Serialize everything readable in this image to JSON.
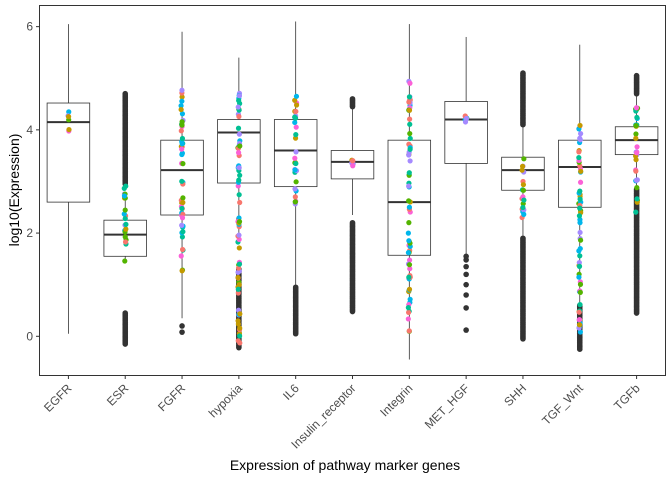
{
  "chart_data": {
    "type": "box",
    "title": "",
    "xlabel": "Expression of pathway marker genes",
    "ylabel": "log10(Expression)",
    "ylim": [
      -0.75,
      6.4
    ],
    "yticks": [
      0,
      2,
      4,
      6
    ],
    "grid": false,
    "legend": "none",
    "categories": [
      "EGFR",
      "ESR",
      "FGFR",
      "hypoxia",
      "IL6",
      "Insulin_receptor",
      "Integrin",
      "MET_HGF",
      "SHH",
      "TGF_Wnt",
      "TGFb"
    ],
    "boxes": [
      {
        "min": 0.05,
        "q1": 2.6,
        "median": 4.15,
        "q3": 4.52,
        "max": 6.05,
        "outliers": []
      },
      {
        "min": 1.45,
        "q1": 1.55,
        "median": 1.97,
        "q3": 2.25,
        "max": 2.7,
        "outliers_high": [
          2.95,
          4.7
        ],
        "outliers_low": [
          -0.15,
          0.45
        ]
      },
      {
        "min": 0.35,
        "q1": 2.35,
        "median": 3.22,
        "q3": 3.8,
        "max": 5.9,
        "outliers": [
          0.2,
          0.08
        ]
      },
      {
        "min": 1.95,
        "q1": 2.97,
        "median": 3.95,
        "q3": 4.2,
        "max": 5.4,
        "outliers_low": [
          -0.22,
          1.3
        ]
      },
      {
        "min": 1.0,
        "q1": 2.9,
        "median": 3.6,
        "q3": 4.2,
        "max": 6.1,
        "outliers_low": [
          0.05,
          0.95
        ]
      },
      {
        "min": 2.35,
        "q1": 3.05,
        "median": 3.38,
        "q3": 3.6,
        "max": 4.45,
        "outliers_high": [
          4.45,
          4.6
        ],
        "outliers_low": [
          0.48,
          2.2
        ]
      },
      {
        "min": -0.45,
        "q1": 1.57,
        "median": 2.6,
        "q3": 3.8,
        "max": 6.05,
        "outliers": []
      },
      {
        "min": 1.6,
        "q1": 3.35,
        "median": 4.2,
        "q3": 4.55,
        "max": 5.8,
        "outliers": [
          0.12,
          0.55,
          0.8,
          1.0,
          1.2,
          1.35,
          1.48,
          1.55
        ]
      },
      {
        "min": 1.95,
        "q1": 2.83,
        "median": 3.22,
        "q3": 3.47,
        "max": 4.1,
        "outliers_high": [
          4.1,
          5.1
        ],
        "outliers_low": [
          -0.05,
          1.9
        ]
      },
      {
        "min": 0.65,
        "q1": 2.5,
        "median": 3.28,
        "q3": 3.8,
        "max": 5.65,
        "outliers_low": [
          -0.25,
          0.6
        ]
      },
      {
        "min": 2.9,
        "q1": 3.52,
        "median": 3.8,
        "q3": 4.06,
        "max": 4.7,
        "outliers_high": [
          4.7,
          5.05
        ],
        "outliers_low": [
          0.45,
          2.85
        ]
      }
    ],
    "jitter_points": {
      "colors": [
        "#F8766D",
        "#C49A00",
        "#53B400",
        "#00C094",
        "#00B6EB",
        "#A58AFF",
        "#FB61D7"
      ],
      "note_free": true,
      "ranges": [
        [
          3.9,
          4.35
        ],
        [
          1.45,
          2.95
        ],
        [
          1.25,
          4.8
        ],
        [
          -0.15,
          4.75
        ],
        [
          2.55,
          4.7
        ],
        [
          3.2,
          3.45
        ],
        [
          0.05,
          4.95
        ],
        [
          4.05,
          4.35
        ],
        [
          2.3,
          3.65
        ],
        [
          0.0,
          4.2
        ],
        [
          2.4,
          4.55
        ]
      ]
    }
  }
}
